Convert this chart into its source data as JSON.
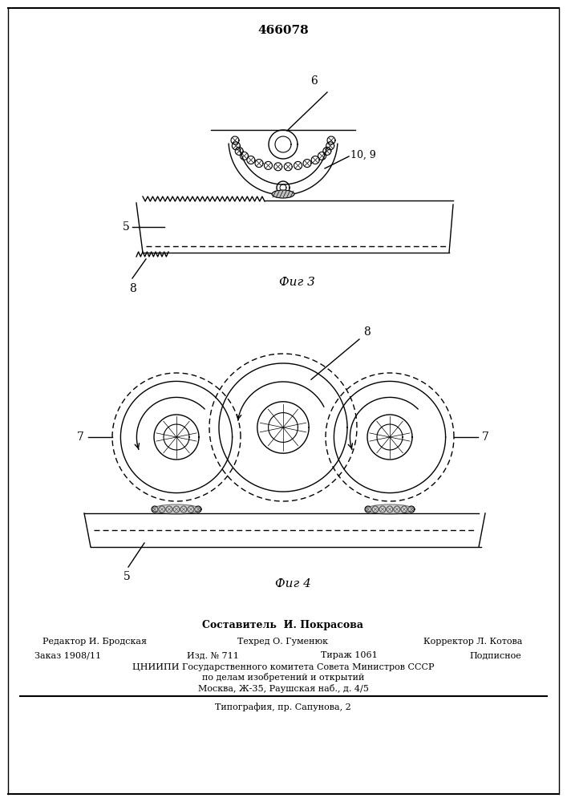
{
  "title": "466078",
  "fig3_label": "Фиг 3",
  "fig4_label": "Фиг 4",
  "label_5a": "5",
  "label_6": "6",
  "label_8a": "8",
  "label_9": "9",
  "label_10": "10",
  "label_7": "7",
  "label_7b": "7",
  "label_8b": "8",
  "label_5b": "5",
  "bg_color": "#ffffff",
  "line_color": "#000000",
  "footer_line1": "Составитель  И. Покрасова",
  "footer_col1_label": "Редактор И. Бродская",
  "footer_col2_label": "Техред О. Гуменюк",
  "footer_col3_label": "Корректор Л. Котова",
  "footer_row2_col1": "Заказ 1908/11",
  "footer_row2_col2": "Изд. № 711",
  "footer_row2_col3": "Тираж 1061",
  "footer_row2_col4": "Подписное",
  "footer_row3": "ЦНИИПИ Государственного комитета Совета Министров СССР",
  "footer_row4": "по делам изобретений и открытий",
  "footer_row5": "Москва, Ж-35, Раушская наб., д. 4/5",
  "footer_row6": "Типография, пр. Сапунова, 2"
}
